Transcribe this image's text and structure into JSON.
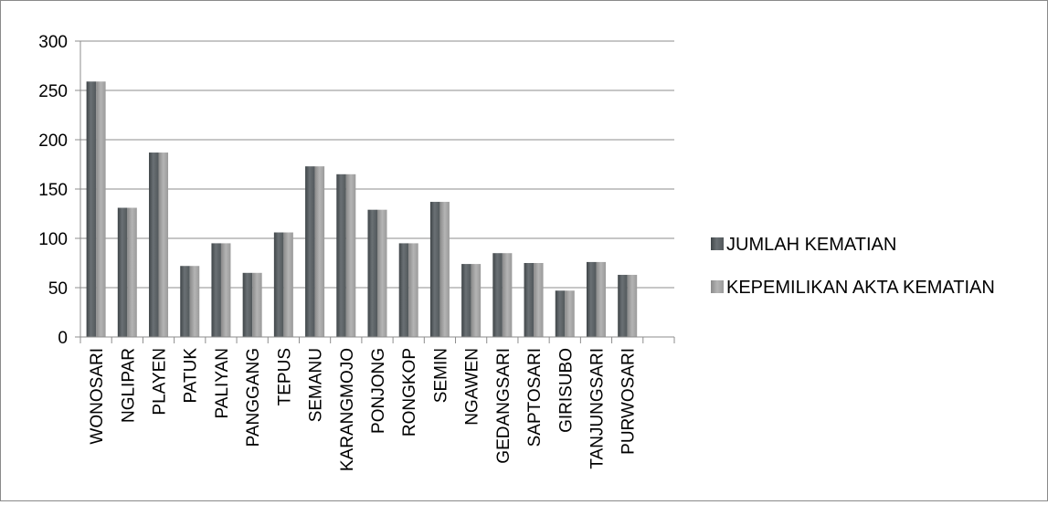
{
  "chart_data": {
    "type": "bar",
    "categories": [
      "WONOSARI",
      "NGLIPAR",
      "PLAYEN",
      "PATUK",
      "PALIYAN",
      "PANGGANG",
      "TEPUS",
      "SEMANU",
      "KARANGMOJO",
      "PONJONG",
      "RONGKOP",
      "SEMIN",
      "NGAWEN",
      "GEDANGSARI",
      "SAPTOSARI",
      "GIRISUBO",
      "TANJUNGSARI",
      "PURWOSARI"
    ],
    "series": [
      {
        "name": "JUMLAH KEMATIAN",
        "color": "#5f6569",
        "values": [
          259,
          131,
          187,
          72,
          95,
          65,
          106,
          173,
          165,
          129,
          95,
          137,
          74,
          85,
          75,
          47,
          76,
          63
        ]
      },
      {
        "name": "KEPEMILIKAN AKTA KEMATIAN",
        "color": "#9c9c9c",
        "values": [
          259,
          131,
          187,
          72,
          95,
          65,
          106,
          173,
          165,
          129,
          95,
          137,
          74,
          85,
          75,
          47,
          76,
          63
        ]
      }
    ],
    "ylim": [
      0,
      300
    ],
    "yticks": [
      0,
      50,
      100,
      150,
      200,
      250,
      300
    ],
    "grid": true,
    "legend": "right"
  }
}
